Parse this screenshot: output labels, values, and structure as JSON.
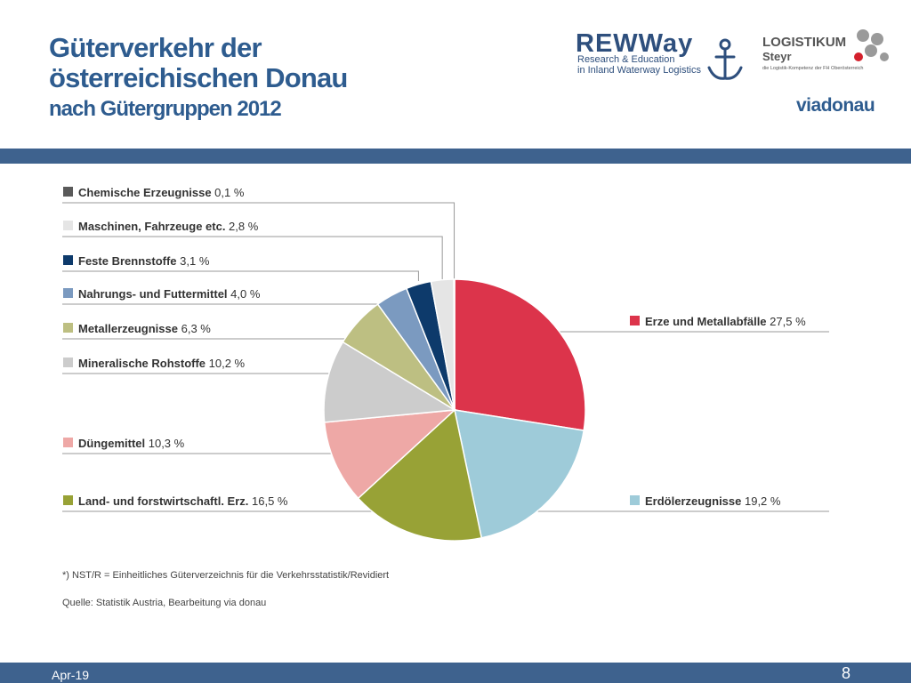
{
  "title": {
    "line1": "Güterverkehr der",
    "line2": "österreichischen Donau",
    "line3": "nach Gütergruppen 2012"
  },
  "logos": {
    "rewway": {
      "name": "REWWay",
      "sub1": "Research & Education",
      "sub2": "in Inland Waterway Logistics"
    },
    "logistikum": {
      "name": "LOGISTIKUM",
      "sub1": "Steyr",
      "sub2": "die Logistik-Kompetenz der FH Oberösterreich"
    },
    "viadonau": {
      "name": "viadonau"
    }
  },
  "chart_data": {
    "type": "pie",
    "slices": [
      {
        "label": "Erze und Metallabfälle",
        "value_text": "27,5 %",
        "value": 27.5,
        "color": "#dc344b"
      },
      {
        "label": "Erdölerzeugnisse",
        "value_text": "19,2 %",
        "value": 19.2,
        "color": "#9ecbd9"
      },
      {
        "label": "Land- und forstwirtschaftl. Erz.",
        "value_text": "16,5 %",
        "value": 16.5,
        "color": "#98a236"
      },
      {
        "label": "Düngemittel",
        "value_text": "10,3 %",
        "value": 10.3,
        "color": "#eea8a6"
      },
      {
        "label": "Mineralische Rohstoffe",
        "value_text": "10,2 %",
        "value": 10.2,
        "color": "#cccccc"
      },
      {
        "label": "Metallerzeugnisse",
        "value_text": "6,3 %",
        "value": 6.3,
        "color": "#bdbf82"
      },
      {
        "label": "Nahrungs- und Futtermittel",
        "value_text": "4,0 %",
        "value": 4.0,
        "color": "#7b9ac0"
      },
      {
        "label": "Feste Brennstoffe",
        "value_text": "3,1 %",
        "value": 3.1,
        "color": "#0d3a6b"
      },
      {
        "label": "Maschinen, Fahrzeuge etc.",
        "value_text": "2,8 %",
        "value": 2.8,
        "color": "#e5e5e5"
      },
      {
        "label": "Chemische Erzeugnisse",
        "value_text": "0,1 %",
        "value": 0.1,
        "color": "#5a5a5a"
      }
    ],
    "footnote": "*) NST/R = Einheitliches Güterverzeichnis für die Verkehrsstatistik/Revidiert",
    "source": "Quelle: Statistik Austria, Bearbeitung via donau"
  },
  "footer": {
    "date": "Apr-19",
    "page": "8"
  }
}
